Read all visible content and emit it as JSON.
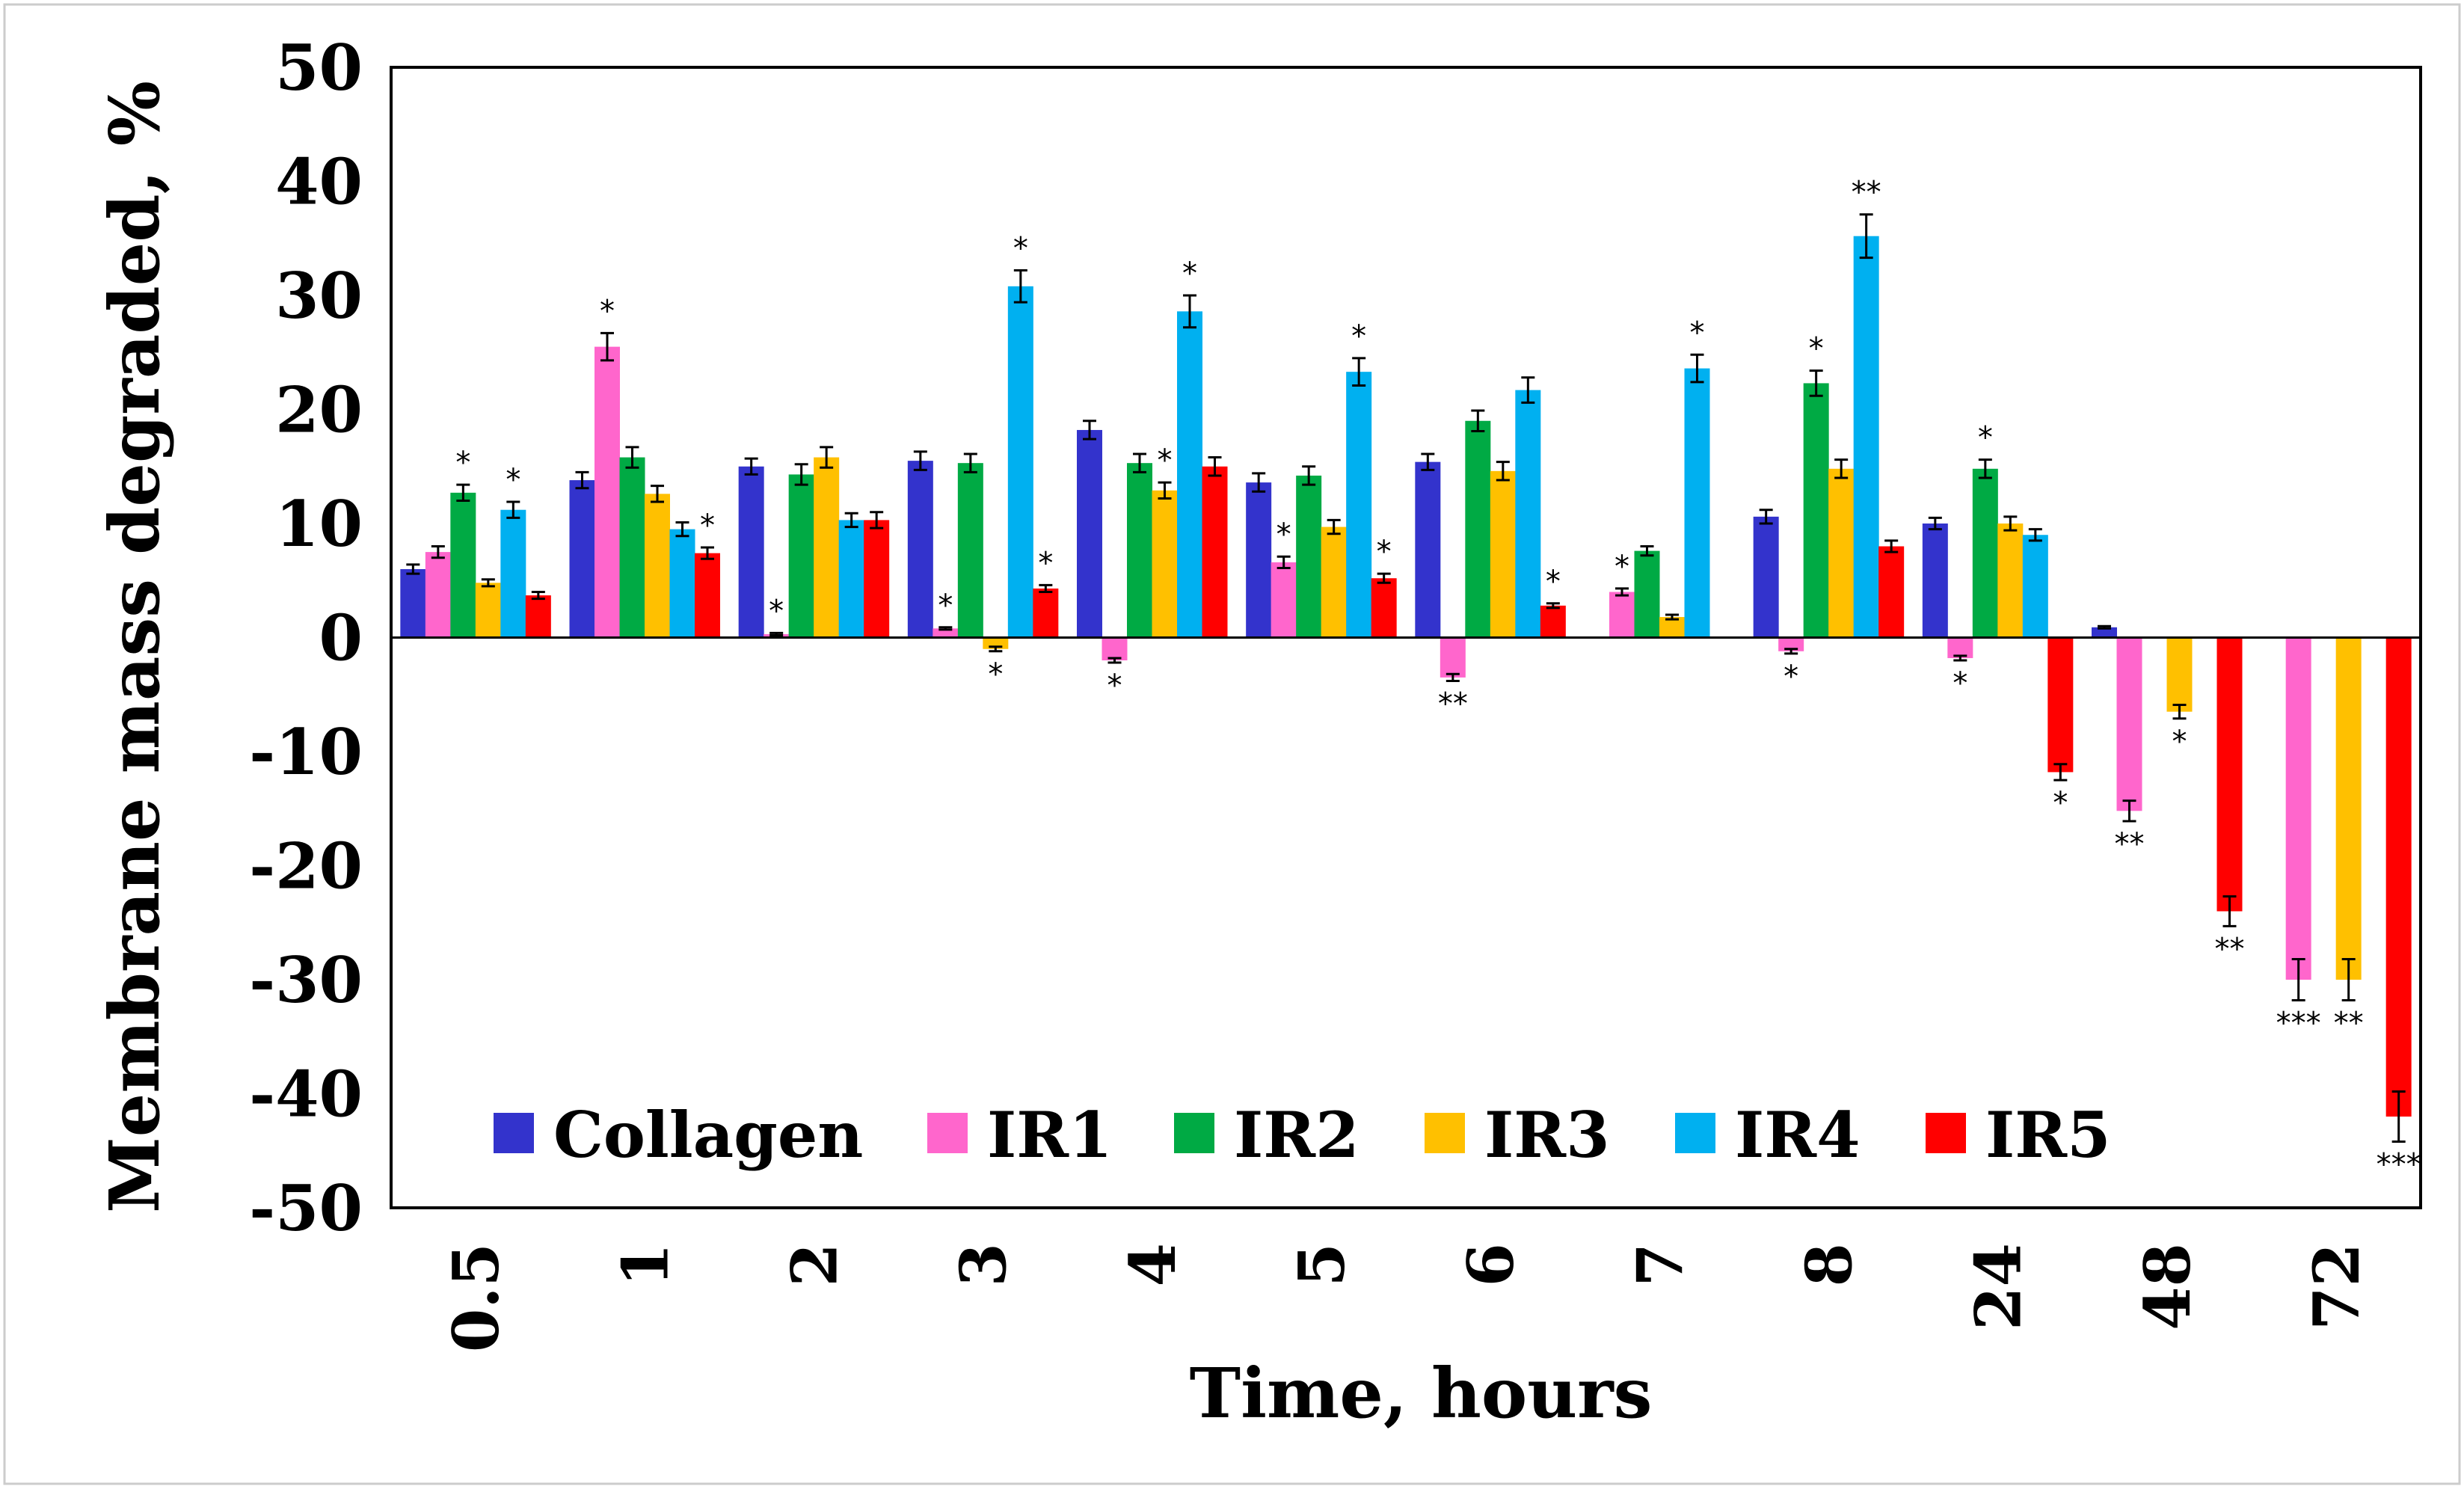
{
  "chart_data": {
    "type": "bar",
    "title": "",
    "xlabel": "Time, hours",
    "ylabel": "Membrane mass degraded, %",
    "ylim": [
      -50,
      50
    ],
    "yticks": [
      "50",
      "40",
      "30",
      "20",
      "10",
      "0",
      "-10",
      "-20",
      "-30",
      "-40",
      "-50"
    ],
    "categories": [
      "0.5",
      "1",
      "2",
      "3",
      "4",
      "5",
      "6",
      "7",
      "8",
      "24",
      "48",
      "72"
    ],
    "legend_position": "bottom-left (inside plot)",
    "series": [
      {
        "name": "Collagen",
        "color": "#3333cc",
        "values": [
          6.0,
          13.8,
          15.0,
          15.5,
          18.2,
          13.6,
          15.4,
          null,
          10.6,
          10.0,
          0.9,
          null
        ],
        "errors": [
          0.4,
          0.7,
          0.7,
          0.8,
          0.8,
          0.8,
          0.7,
          null,
          0.6,
          0.5,
          0.1,
          null
        ],
        "sig": [
          "",
          "",
          "",
          "",
          "",
          "",
          "",
          "",
          "",
          "",
          "",
          ""
        ]
      },
      {
        "name": "IR1",
        "color": "#ff66cc",
        "values": [
          7.5,
          25.5,
          0.3,
          0.8,
          -2.0,
          6.6,
          -3.5,
          4.0,
          -1.2,
          -1.8,
          -15.2,
          -30.0
        ],
        "errors": [
          0.5,
          1.2,
          0.1,
          0.1,
          0.2,
          0.5,
          0.3,
          0.3,
          0.2,
          0.2,
          0.9,
          1.8
        ],
        "sig": [
          "",
          "*",
          "*",
          "*",
          "*",
          "*",
          "**",
          "*",
          "*",
          "*",
          "**",
          "***"
        ]
      },
      {
        "name": "IR2",
        "color": "#00aa44",
        "values": [
          12.7,
          15.8,
          14.3,
          15.3,
          15.3,
          14.2,
          19.0,
          7.6,
          22.3,
          14.8,
          null,
          null
        ],
        "errors": [
          0.7,
          0.9,
          0.9,
          0.8,
          0.8,
          0.8,
          0.9,
          0.4,
          1.1,
          0.8,
          null,
          null
        ],
        "sig": [
          "*",
          "",
          "",
          "",
          "",
          "",
          "",
          "",
          "*",
          "*",
          "",
          ""
        ]
      },
      {
        "name": "IR3",
        "color": "#ffc000",
        "values": [
          4.8,
          12.6,
          15.8,
          -1.0,
          12.9,
          9.7,
          14.6,
          1.8,
          14.8,
          10.0,
          -6.5,
          -30.0
        ],
        "errors": [
          0.3,
          0.7,
          0.9,
          0.2,
          0.7,
          0.6,
          0.8,
          0.2,
          0.8,
          0.6,
          0.6,
          1.8
        ],
        "sig": [
          "",
          "",
          "",
          "*",
          "*",
          "",
          "",
          "",
          "",
          "",
          "*",
          "**"
        ]
      },
      {
        "name": "IR4",
        "color": "#00b0f0",
        "values": [
          11.2,
          9.5,
          10.3,
          30.8,
          28.6,
          23.3,
          21.7,
          23.6,
          35.2,
          9.0,
          null,
          null
        ],
        "errors": [
          0.7,
          0.6,
          0.6,
          1.4,
          1.4,
          1.2,
          1.1,
          1.2,
          1.9,
          0.5,
          null,
          null
        ],
        "sig": [
          "*",
          "",
          "",
          "*",
          "*",
          "*",
          "",
          "*",
          "**",
          "",
          "",
          ""
        ]
      },
      {
        "name": "IR5",
        "color": "#ff0000",
        "values": [
          3.7,
          7.4,
          10.3,
          4.3,
          15.0,
          5.2,
          2.8,
          null,
          8.0,
          -11.8,
          -24.0,
          -42.0
        ],
        "errors": [
          0.3,
          0.5,
          0.7,
          0.3,
          0.8,
          0.4,
          0.2,
          null,
          0.5,
          0.7,
          1.3,
          2.2
        ],
        "sig": [
          "",
          "*",
          "",
          "*",
          "",
          "*",
          "*",
          "",
          "",
          "*",
          "**",
          "***"
        ]
      }
    ]
  }
}
